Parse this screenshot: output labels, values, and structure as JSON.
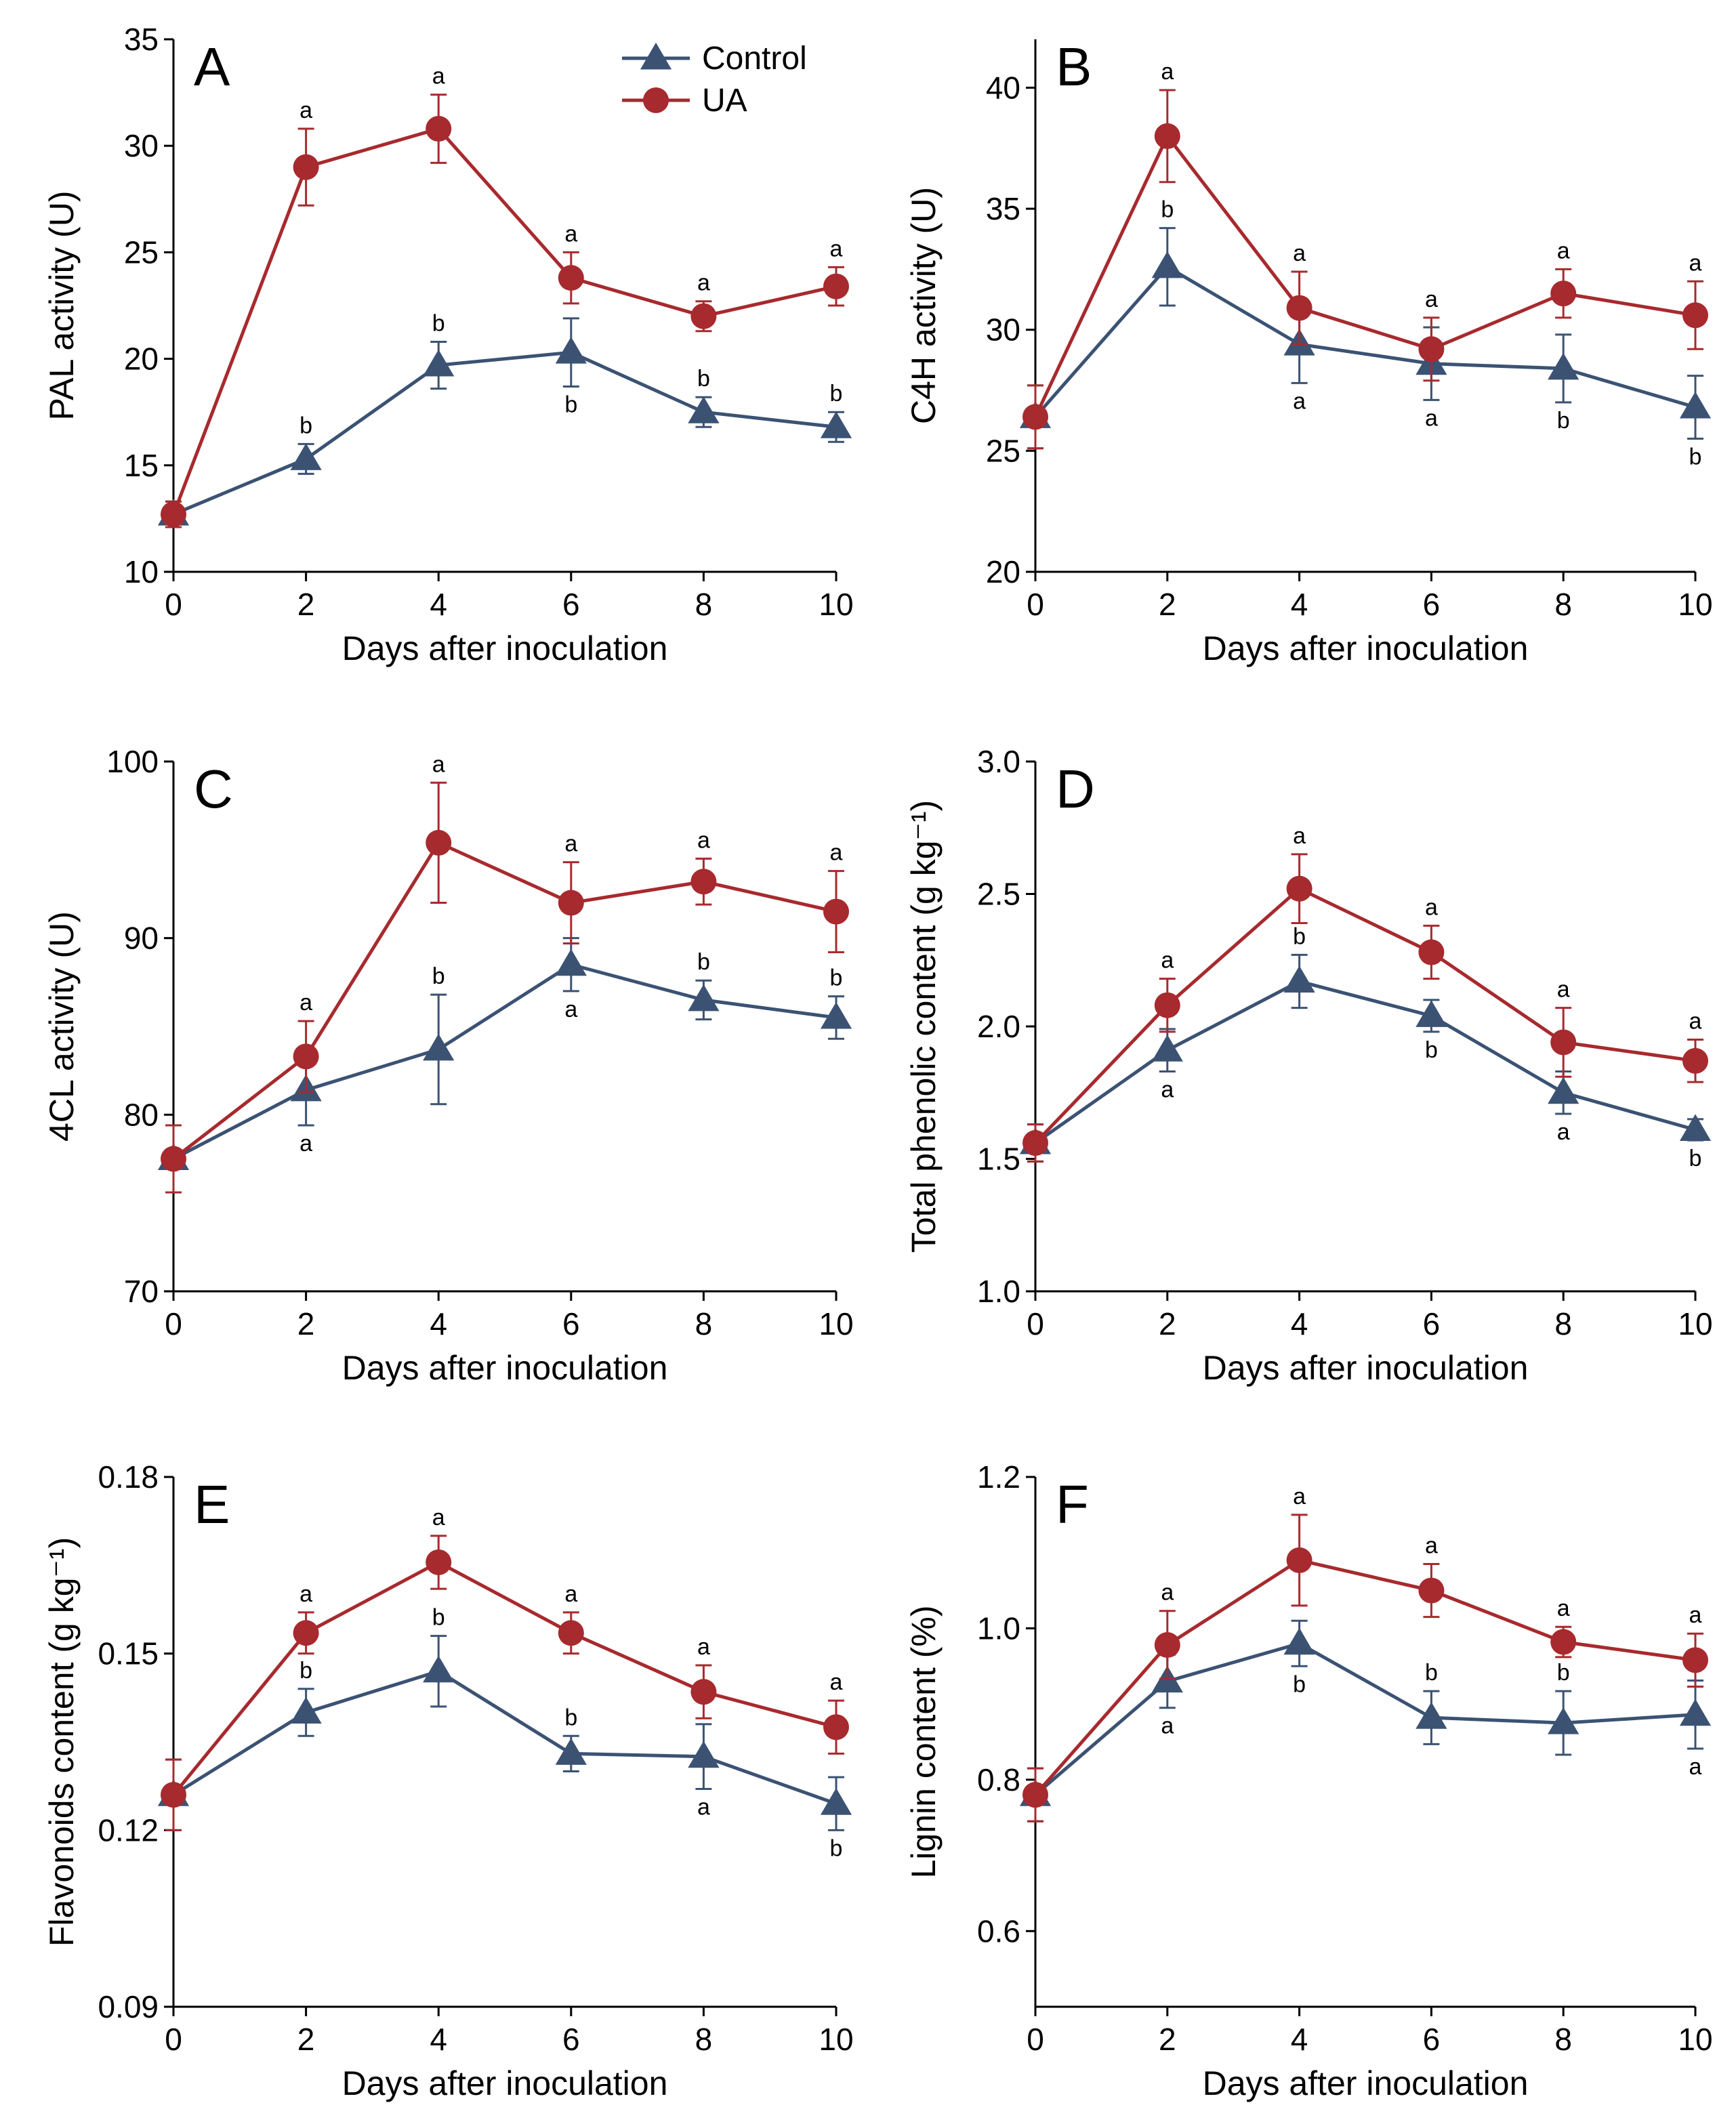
{
  "figure": {
    "colors": {
      "control": "#3b5273",
      "ua": "#a72a2e"
    },
    "legend": {
      "placement": "top-right of panel A",
      "entries": [
        "Control",
        "UA"
      ]
    }
  },
  "chart_data": [
    {
      "panel": "A",
      "type": "line",
      "xlabel": "Days after inoculation",
      "ylabel": "PAL activity (U)",
      "xlim": [
        0,
        10
      ],
      "ylim": [
        10,
        35
      ],
      "xticks": [
        0,
        2,
        4,
        6,
        8,
        10
      ],
      "yticks": [
        10,
        15,
        20,
        25,
        30,
        35
      ],
      "ytick_labels": [
        "10",
        "15",
        "20",
        "25",
        "30",
        "35"
      ],
      "x": [
        0,
        2,
        4,
        6,
        8,
        10
      ],
      "series": [
        {
          "name": "Control",
          "values": [
            12.7,
            15.3,
            19.7,
            20.3,
            17.5,
            16.8
          ],
          "errors": [
            0.6,
            0.7,
            1.1,
            1.6,
            0.7,
            0.7
          ],
          "labels": [
            "",
            "b",
            "b",
            "b",
            "b",
            "b"
          ],
          "label_pos": [
            "",
            "above",
            "above",
            "below",
            "above",
            "above"
          ]
        },
        {
          "name": "UA",
          "values": [
            12.7,
            29.0,
            30.8,
            23.8,
            22.0,
            23.4
          ],
          "errors": [
            0.6,
            1.8,
            1.6,
            1.2,
            0.7,
            0.9
          ],
          "labels": [
            "",
            "a",
            "a",
            "a",
            "a",
            "a"
          ],
          "label_pos": [
            "",
            "above",
            "above",
            "above",
            "above",
            "above"
          ]
        }
      ]
    },
    {
      "panel": "B",
      "type": "line",
      "xlabel": "Days after inoculation",
      "ylabel": "C4H activity (U)",
      "xlim": [
        0,
        10
      ],
      "ylim": [
        20,
        42
      ],
      "xticks": [
        0,
        2,
        4,
        6,
        8,
        10
      ],
      "yticks": [
        20,
        25,
        30,
        35,
        40
      ],
      "ytick_labels": [
        "20",
        "25",
        "30",
        "35",
        "40"
      ],
      "x": [
        0,
        2,
        4,
        6,
        8,
        10
      ],
      "series": [
        {
          "name": "Control",
          "values": [
            26.4,
            32.6,
            29.4,
            28.6,
            28.4,
            26.8
          ],
          "errors": [
            1.3,
            1.6,
            1.6,
            1.5,
            1.4,
            1.3
          ],
          "labels": [
            "",
            "b",
            "a",
            "a",
            "b",
            "b"
          ],
          "label_pos": [
            "",
            "above",
            "below",
            "below",
            "below",
            "below"
          ]
        },
        {
          "name": "UA",
          "values": [
            26.4,
            38.0,
            30.9,
            29.2,
            31.5,
            30.6
          ],
          "errors": [
            1.3,
            1.9,
            1.5,
            1.3,
            1.0,
            1.4
          ],
          "labels": [
            "",
            "a",
            "a",
            "a",
            "a",
            "a"
          ],
          "label_pos": [
            "",
            "above",
            "above",
            "above",
            "above",
            "above"
          ]
        }
      ]
    },
    {
      "panel": "C",
      "type": "line",
      "xlabel": "Days after inoculation",
      "ylabel": "4CL activity (U)",
      "xlim": [
        0,
        10
      ],
      "ylim": [
        70,
        100
      ],
      "xticks": [
        0,
        2,
        4,
        6,
        8,
        10
      ],
      "yticks": [
        70,
        80,
        90,
        100
      ],
      "ytick_labels": [
        "70",
        "80",
        "90",
        "100"
      ],
      "x": [
        0,
        2,
        4,
        6,
        8,
        10
      ],
      "series": [
        {
          "name": "Control",
          "values": [
            77.5,
            81.4,
            83.7,
            88.5,
            86.5,
            85.5
          ],
          "errors": [
            1.9,
            2.0,
            3.1,
            1.5,
            1.1,
            1.2
          ],
          "labels": [
            "",
            "a",
            "b",
            "a",
            "b",
            "b"
          ],
          "label_pos": [
            "",
            "below",
            "above",
            "below",
            "above",
            "above"
          ]
        },
        {
          "name": "UA",
          "values": [
            77.5,
            83.3,
            95.4,
            92.0,
            93.2,
            91.5
          ],
          "errors": [
            1.9,
            2.0,
            3.4,
            2.3,
            1.3,
            2.3
          ],
          "labels": [
            "",
            "a",
            "a",
            "a",
            "a",
            "a"
          ],
          "label_pos": [
            "",
            "above",
            "above",
            "above",
            "above",
            "above"
          ]
        }
      ]
    },
    {
      "panel": "D",
      "type": "line",
      "xlabel": "Days after inoculation",
      "ylabel": "Total phenolic content (g kg⁻¹)",
      "xlim": [
        0,
        10
      ],
      "ylim": [
        1.0,
        3.0
      ],
      "xticks": [
        0,
        2,
        4,
        6,
        8,
        10
      ],
      "yticks": [
        1.0,
        1.5,
        2.0,
        2.5,
        3.0
      ],
      "ytick_labels": [
        "1.0",
        "1.5",
        "2.0",
        "2.5",
        "3.0"
      ],
      "x": [
        0,
        2,
        4,
        6,
        8,
        10
      ],
      "series": [
        {
          "name": "Control",
          "values": [
            1.56,
            1.91,
            2.17,
            2.04,
            1.75,
            1.61
          ],
          "errors": [
            0.07,
            0.08,
            0.1,
            0.06,
            0.08,
            0.04
          ],
          "labels": [
            "",
            "a",
            "b",
            "b",
            "a",
            "b"
          ],
          "label_pos": [
            "",
            "below",
            "above",
            "below",
            "below",
            "below"
          ]
        },
        {
          "name": "UA",
          "values": [
            1.56,
            2.08,
            2.52,
            2.28,
            1.94,
            1.87
          ],
          "errors": [
            0.07,
            0.1,
            0.13,
            0.1,
            0.13,
            0.08
          ],
          "labels": [
            "",
            "a",
            "a",
            "a",
            "a",
            "a"
          ],
          "label_pos": [
            "",
            "above",
            "above",
            "above",
            "above",
            "above"
          ]
        }
      ]
    },
    {
      "panel": "E",
      "type": "line",
      "xlabel": "Days after inoculation",
      "ylabel": "Flavonoids content  (g kg⁻¹)",
      "xlim": [
        0,
        10
      ],
      "ylim": [
        0.09,
        0.18
      ],
      "xticks": [
        0,
        2,
        4,
        6,
        8,
        10
      ],
      "yticks": [
        0.09,
        0.12,
        0.15,
        0.18
      ],
      "ytick_labels": [
        "0.09",
        "0.12",
        "0.15",
        "0.18"
      ],
      "x": [
        0,
        2,
        4,
        6,
        8,
        10
      ],
      "series": [
        {
          "name": "Control",
          "values": [
            0.126,
            0.14,
            0.147,
            0.133,
            0.1325,
            0.1245
          ],
          "errors": [
            0.006,
            0.004,
            0.006,
            0.003,
            0.0055,
            0.0045
          ],
          "labels": [
            "",
            "b",
            "b",
            "b",
            "a",
            "b"
          ],
          "label_pos": [
            "",
            "above",
            "above",
            "above",
            "below",
            "below"
          ]
        },
        {
          "name": "UA",
          "values": [
            0.126,
            0.1535,
            0.1655,
            0.1535,
            0.1435,
            0.1375
          ],
          "errors": [
            0.006,
            0.0035,
            0.0045,
            0.0035,
            0.0045,
            0.0045
          ],
          "labels": [
            "",
            "a",
            "a",
            "a",
            "a",
            "a"
          ],
          "label_pos": [
            "",
            "above",
            "above",
            "above",
            "above",
            "above"
          ]
        }
      ]
    },
    {
      "panel": "F",
      "type": "line",
      "xlabel": "Days after inoculation",
      "ylabel": "Lignin content (%)",
      "xlim": [
        0,
        10
      ],
      "ylim": [
        0.5,
        1.2
      ],
      "xticks": [
        0,
        2,
        4,
        6,
        8,
        10
      ],
      "yticks": [
        0.6,
        0.8,
        1.0,
        1.2
      ],
      "ytick_labels": [
        "0.6",
        "0.8",
        "1.0",
        "1.2"
      ],
      "x": [
        0,
        2,
        4,
        6,
        8,
        10
      ],
      "series": [
        {
          "name": "Control",
          "values": [
            0.78,
            0.93,
            0.98,
            0.882,
            0.875,
            0.886
          ],
          "errors": [
            0.035,
            0.035,
            0.03,
            0.035,
            0.042,
            0.045
          ],
          "labels": [
            "",
            "a",
            "b",
            "b",
            "b",
            "a"
          ],
          "label_pos": [
            "",
            "below",
            "below",
            "above",
            "above",
            "below"
          ]
        },
        {
          "name": "UA",
          "values": [
            0.78,
            0.978,
            1.09,
            1.05,
            0.982,
            0.958
          ],
          "errors": [
            0.035,
            0.045,
            0.06,
            0.035,
            0.02,
            0.035
          ],
          "labels": [
            "",
            "a",
            "a",
            "a",
            "a",
            "a"
          ],
          "label_pos": [
            "",
            "above",
            "above",
            "above",
            "above",
            "above"
          ]
        }
      ]
    }
  ]
}
